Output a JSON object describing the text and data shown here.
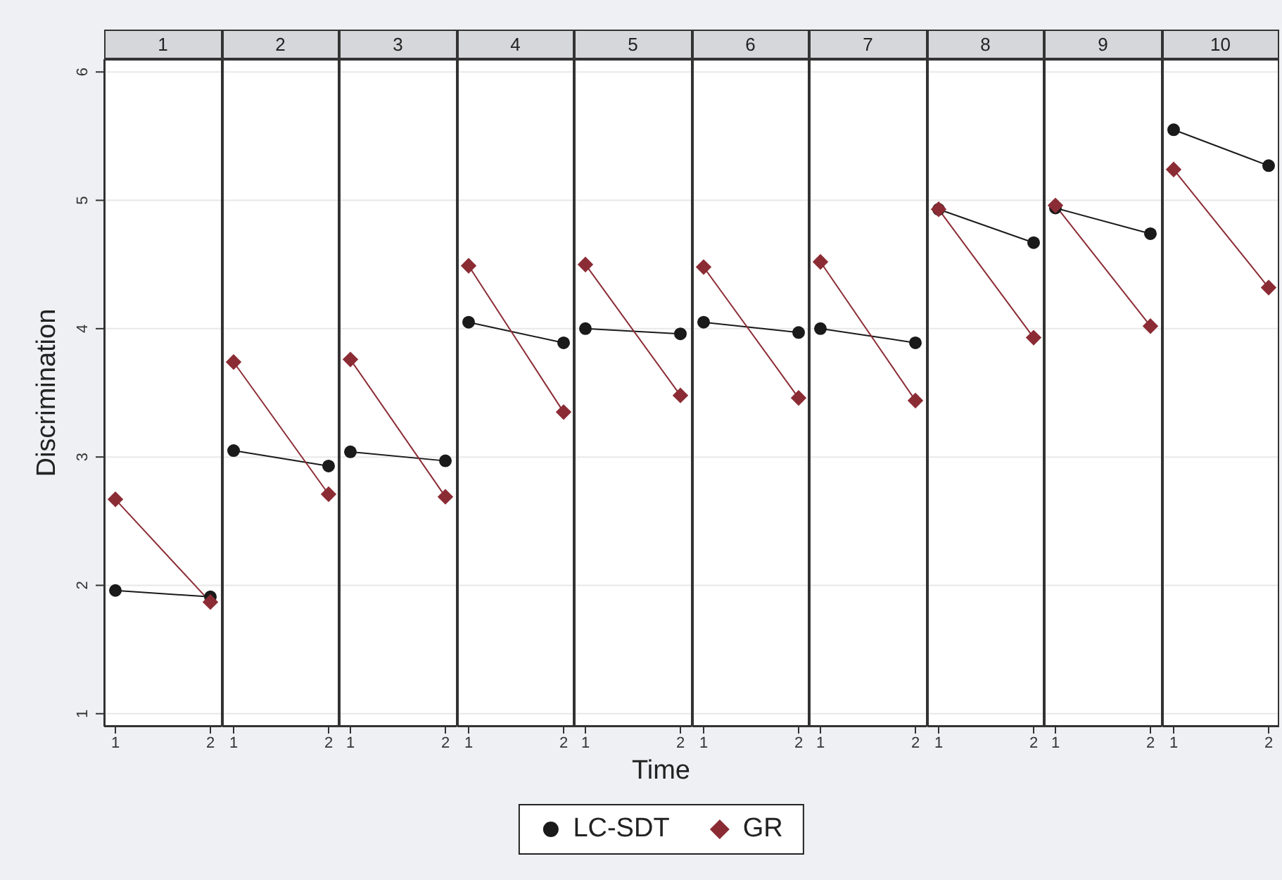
{
  "chart_data": [
    {
      "type": "line",
      "title": "1",
      "ylabel": "Discrimination",
      "grid": "y",
      "categories": [
        "1",
        "2"
      ],
      "ylim": [
        0.9,
        6.1
      ],
      "yticks": [
        1,
        2,
        3,
        4,
        5,
        6
      ],
      "series": [
        {
          "color": "#1a1a1a",
          "marker": "circle",
          "values": [
            1.96,
            1.91
          ]
        },
        {
          "color": "#8b2c35",
          "marker": "diamond",
          "values": [
            2.67,
            1.87
          ]
        }
      ]
    },
    {
      "type": "line",
      "title": "2",
      "tick_labels": "x",
      "grid": "y",
      "categories": [
        "1",
        "2"
      ],
      "ylim": [
        0.9,
        6.1
      ],
      "yticks": [
        1,
        2,
        3,
        4,
        5,
        6
      ],
      "series": [
        {
          "color": "#1a1a1a",
          "marker": "circle",
          "values": [
            3.05,
            2.93
          ]
        },
        {
          "color": "#8b2c35",
          "marker": "diamond",
          "values": [
            3.74,
            2.71
          ]
        }
      ]
    },
    {
      "type": "line",
      "title": "3",
      "tick_labels": "x",
      "grid": "y",
      "categories": [
        "1",
        "2"
      ],
      "ylim": [
        0.9,
        6.1
      ],
      "yticks": [
        1,
        2,
        3,
        4,
        5,
        6
      ],
      "series": [
        {
          "color": "#1a1a1a",
          "marker": "circle",
          "values": [
            3.04,
            2.97
          ]
        },
        {
          "color": "#8b2c35",
          "marker": "diamond",
          "values": [
            3.76,
            2.69
          ]
        }
      ]
    },
    {
      "type": "line",
      "title": "4",
      "tick_labels": "x",
      "grid": "y",
      "categories": [
        "1",
        "2"
      ],
      "ylim": [
        0.9,
        6.1
      ],
      "yticks": [
        1,
        2,
        3,
        4,
        5,
        6
      ],
      "series": [
        {
          "color": "#1a1a1a",
          "marker": "circle",
          "values": [
            4.05,
            3.89
          ]
        },
        {
          "color": "#8b2c35",
          "marker": "diamond",
          "values": [
            4.49,
            3.35
          ]
        }
      ]
    },
    {
      "type": "line",
      "title": "5",
      "xlabel": "Time",
      "legend": "bottom",
      "tick_labels": "x",
      "grid": "y",
      "categories": [
        "1",
        "2"
      ],
      "ylim": [
        0.9,
        6.1
      ],
      "yticks": [
        1,
        2,
        3,
        4,
        5,
        6
      ],
      "series": [
        {
          "name": "LC-SDT",
          "color": "#1a1a1a",
          "marker": "circle",
          "values": [
            4.0,
            3.96
          ]
        },
        {
          "name": "GR",
          "color": "#8b2c35",
          "marker": "diamond",
          "values": [
            4.5,
            3.48
          ]
        }
      ]
    },
    {
      "type": "line",
      "title": "6",
      "tick_labels": "x",
      "grid": "y",
      "categories": [
        "1",
        "2"
      ],
      "ylim": [
        0.9,
        6.1
      ],
      "yticks": [
        1,
        2,
        3,
        4,
        5,
        6
      ],
      "series": [
        {
          "color": "#1a1a1a",
          "marker": "circle",
          "values": [
            4.05,
            3.97
          ]
        },
        {
          "color": "#8b2c35",
          "marker": "diamond",
          "values": [
            4.48,
            3.46
          ]
        }
      ]
    },
    {
      "type": "line",
      "title": "7",
      "tick_labels": "x",
      "grid": "y",
      "categories": [
        "1",
        "2"
      ],
      "ylim": [
        0.9,
        6.1
      ],
      "yticks": [
        1,
        2,
        3,
        4,
        5,
        6
      ],
      "series": [
        {
          "color": "#1a1a1a",
          "marker": "circle",
          "values": [
            4.0,
            3.89
          ]
        },
        {
          "color": "#8b2c35",
          "marker": "diamond",
          "values": [
            4.52,
            3.44
          ]
        }
      ]
    },
    {
      "type": "line",
      "title": "8",
      "tick_labels": "x",
      "grid": "y",
      "categories": [
        "1",
        "2"
      ],
      "ylim": [
        0.9,
        6.1
      ],
      "yticks": [
        1,
        2,
        3,
        4,
        5,
        6
      ],
      "series": [
        {
          "color": "#1a1a1a",
          "marker": "circle",
          "values": [
            4.93,
            4.67
          ]
        },
        {
          "color": "#8b2c35",
          "marker": "diamond",
          "values": [
            4.93,
            3.93
          ]
        }
      ]
    },
    {
      "type": "line",
      "title": "9",
      "tick_labels": "x",
      "grid": "y",
      "categories": [
        "1",
        "2"
      ],
      "ylim": [
        0.9,
        6.1
      ],
      "yticks": [
        1,
        2,
        3,
        4,
        5,
        6
      ],
      "series": [
        {
          "color": "#1a1a1a",
          "marker": "circle",
          "values": [
            4.94,
            4.74
          ]
        },
        {
          "color": "#8b2c35",
          "marker": "diamond",
          "values": [
            4.96,
            4.02
          ]
        }
      ]
    },
    {
      "type": "line",
      "title": "10",
      "tick_labels": "x",
      "grid": "y",
      "categories": [
        "1",
        "2"
      ],
      "ylim": [
        0.9,
        6.1
      ],
      "yticks": [
        1,
        2,
        3,
        4,
        5,
        6
      ],
      "series": [
        {
          "color": "#1a1a1a",
          "marker": "circle",
          "values": [
            5.55,
            5.27
          ]
        },
        {
          "color": "#8b2c35",
          "marker": "diamond",
          "values": [
            5.24,
            4.32
          ]
        }
      ]
    }
  ]
}
